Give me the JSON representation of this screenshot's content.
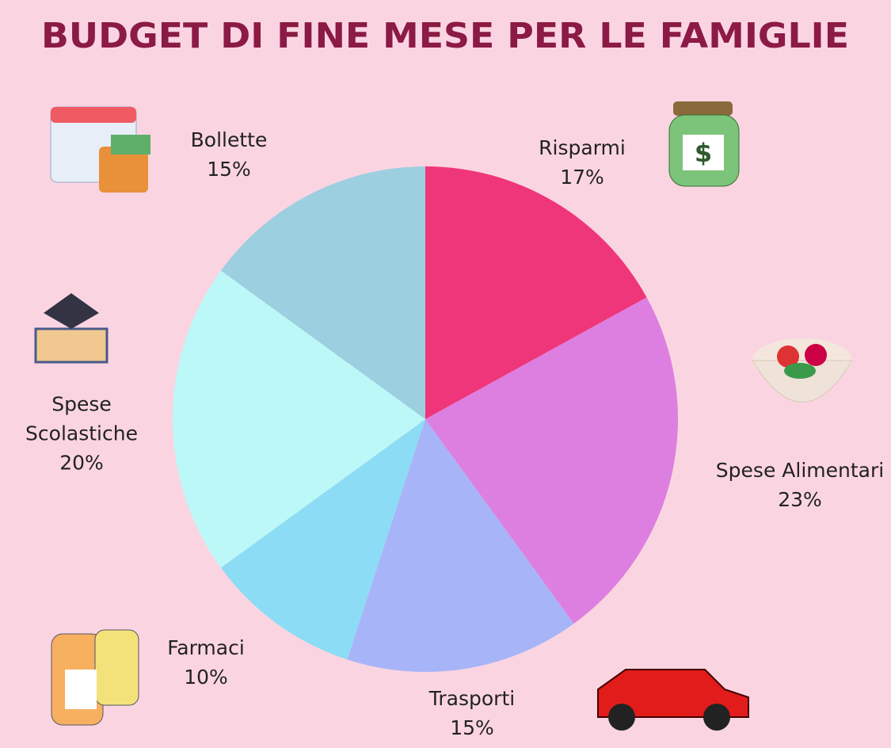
{
  "chart_data": {
    "type": "pie",
    "title": "BUDGET DI FINE MESE PER LE FAMIGLIE",
    "categories": [
      "Risparmi",
      "Spese Alimentari",
      "Trasporti",
      "Farmaci",
      "Spese Scolastiche",
      "Bollette"
    ],
    "values": [
      17,
      23,
      15,
      10,
      20,
      15
    ],
    "value_labels": [
      "17%",
      "23%",
      "15%",
      "10%",
      "20%",
      "15%"
    ],
    "colors": [
      "#f0367a",
      "#dd7fe0",
      "#a8b4f8",
      "#8ddcf5",
      "#bdf8f8",
      "#9ccfdf"
    ]
  }
}
